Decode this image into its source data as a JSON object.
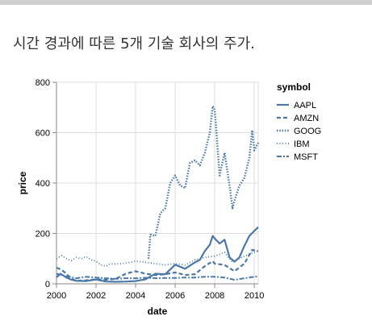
{
  "page": {
    "title": "시간 경과에 따른 5개 기술 회사의 주가."
  },
  "chart_data": {
    "type": "line",
    "xlabel": "date",
    "ylabel": "price",
    "xlim": [
      2000,
      2010.2
    ],
    "ylim": [
      0,
      800
    ],
    "x_ticks": [
      2000,
      2002,
      2004,
      2006,
      2008,
      2010
    ],
    "x_tick_labels": [
      "2000",
      "2002",
      "2004",
      "2006",
      "2008",
      "2010"
    ],
    "y_ticks": [
      0,
      200,
      400,
      600,
      800
    ],
    "y_tick_labels": [
      "0",
      "200",
      "400",
      "600",
      "800"
    ],
    "grid": true,
    "legend": {
      "title": "symbol",
      "position": "right"
    },
    "color": "#4c78a8",
    "series": [
      {
        "name": "AAPL",
        "dash": "solid",
        "x": [
          2000.0,
          2000.2,
          2000.5,
          2000.7,
          2001.0,
          2001.5,
          2002.0,
          2002.5,
          2003.0,
          2003.5,
          2004.0,
          2004.5,
          2005.0,
          2005.5,
          2006.0,
          2006.5,
          2007.0,
          2007.25,
          2007.5,
          2007.75,
          2007.9,
          2008.0,
          2008.25,
          2008.5,
          2008.75,
          2009.0,
          2009.25,
          2009.5,
          2009.75,
          2010.0,
          2010.2
        ],
        "y": [
          26,
          40,
          25,
          18,
          12,
          11,
          17,
          9,
          8,
          9,
          11,
          18,
          40,
          38,
          76,
          60,
          85,
          95,
          130,
          155,
          190,
          180,
          160,
          175,
          105,
          88,
          105,
          150,
          190,
          210,
          225
        ]
      },
      {
        "name": "AMZN",
        "dash": "dashed",
        "x": [
          2000.0,
          2000.25,
          2000.5,
          2000.75,
          2001.0,
          2001.5,
          2002.0,
          2002.5,
          2003.0,
          2003.5,
          2004.0,
          2004.5,
          2005.0,
          2005.5,
          2006.0,
          2006.5,
          2007.0,
          2007.5,
          2007.9,
          2008.0,
          2008.5,
          2008.9,
          2009.0,
          2009.5,
          2009.9,
          2010.2
        ],
        "y": [
          64,
          56,
          40,
          20,
          12,
          14,
          18,
          16,
          20,
          40,
          50,
          40,
          35,
          38,
          45,
          35,
          38,
          70,
          90,
          80,
          75,
          55,
          50,
          80,
          135,
          130
        ]
      },
      {
        "name": "GOOG",
        "dash": "dotted",
        "x": [
          2004.65,
          2004.75,
          2005.0,
          2005.25,
          2005.5,
          2005.75,
          2006.0,
          2006.25,
          2006.5,
          2006.75,
          2007.0,
          2007.25,
          2007.5,
          2007.75,
          2007.9,
          2008.0,
          2008.25,
          2008.5,
          2008.75,
          2008.9,
          2009.0,
          2009.25,
          2009.5,
          2009.75,
          2009.9,
          2010.0,
          2010.2
        ],
        "y": [
          100,
          195,
          190,
          280,
          300,
          400,
          430,
          390,
          380,
          480,
          490,
          470,
          520,
          600,
          705,
          690,
          430,
          520,
          390,
          300,
          330,
          390,
          420,
          500,
          610,
          530,
          560
        ]
      },
      {
        "name": "IBM",
        "dash": "dotted-fine",
        "x": [
          2000.0,
          2000.25,
          2000.5,
          2000.75,
          2001.0,
          2001.25,
          2001.5,
          2001.75,
          2002.0,
          2002.25,
          2002.5,
          2002.75,
          2003.0,
          2003.5,
          2004.0,
          2004.5,
          2005.0,
          2005.5,
          2006.0,
          2006.5,
          2007.0,
          2007.5,
          2008.0,
          2008.5,
          2008.9,
          2009.0,
          2009.5,
          2010.0,
          2010.2
        ],
        "y": [
          100,
          112,
          100,
          92,
          105,
          100,
          108,
          95,
          90,
          75,
          70,
          80,
          78,
          82,
          90,
          85,
          80,
          75,
          80,
          75,
          95,
          105,
          110,
          125,
          85,
          90,
          110,
          125,
          130
        ]
      },
      {
        "name": "MSFT",
        "dash": "dashdot",
        "x": [
          2000.0,
          2000.5,
          2001.0,
          2001.5,
          2002.0,
          2002.5,
          2003.0,
          2003.5,
          2004.0,
          2004.5,
          2005.0,
          2005.5,
          2006.0,
          2006.5,
          2007.0,
          2007.5,
          2008.0,
          2008.5,
          2009.0,
          2009.5,
          2010.0,
          2010.2
        ],
        "y": [
          40,
          30,
          22,
          28,
          25,
          22,
          20,
          22,
          22,
          24,
          22,
          23,
          23,
          25,
          25,
          28,
          28,
          25,
          16,
          22,
          28,
          29
        ]
      }
    ]
  }
}
